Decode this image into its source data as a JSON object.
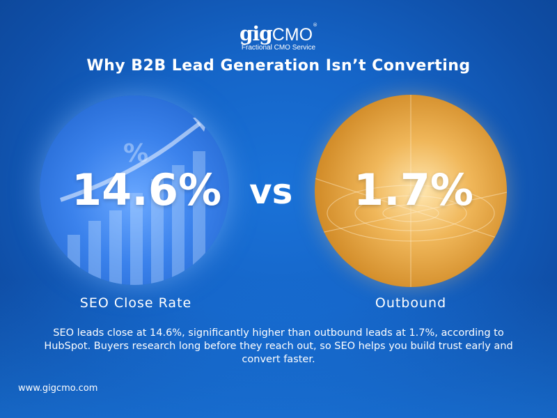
{
  "brand": {
    "logo_bold": "gig",
    "logo_light": "CMO",
    "registered": "®",
    "tagline": "Fractional CMO Service"
  },
  "title": "Why B2B Lead Generation Isn’t Converting",
  "comparison": {
    "left": {
      "value": "14.6%",
      "label": "SEO Close Rate",
      "color": "#3b82ec"
    },
    "separator": "vs",
    "right": {
      "value": "1.7%",
      "label": "Outbound",
      "color": "#e0a040"
    }
  },
  "description": "SEO leads close at 14.6%, significantly higher than outbound leads at 1.7%, according to HubSpot. Buyers research long before they reach out, so SEO helps you build trust early and convert faster.",
  "website": "www.gigcmo.com"
}
